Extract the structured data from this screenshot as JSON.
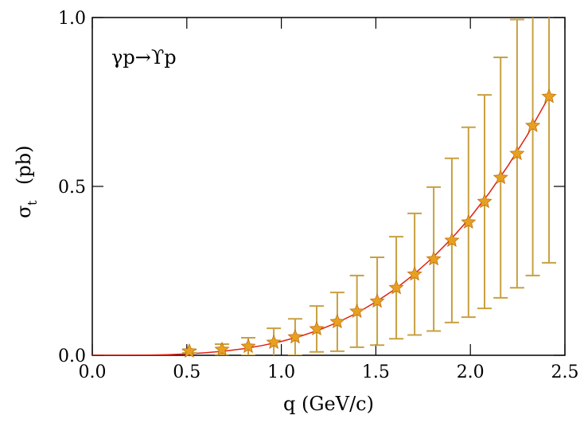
{
  "chart_data": {
    "type": "scatter",
    "annotation": "γp→ϒp",
    "xlabel": "q  (GeV/c)",
    "ylabel": {
      "symbol": "σ",
      "subscript": "t",
      "unit": "(pb)"
    },
    "xlim": [
      0,
      2.5
    ],
    "ylim": [
      0,
      1.0
    ],
    "xticks": [
      {
        "value": 0,
        "label": "0.0"
      },
      {
        "value": 0.5,
        "label": "0.5"
      },
      {
        "value": 1,
        "label": "1.0"
      },
      {
        "value": 1.5,
        "label": "1.5"
      },
      {
        "value": 2,
        "label": "2.0"
      },
      {
        "value": 2.5,
        "label": "2.5"
      }
    ],
    "yticks": [
      {
        "value": 0,
        "label": "0.0"
      },
      {
        "value": 0.5,
        "label": "0.5"
      },
      {
        "value": 1,
        "label": "1.0"
      }
    ],
    "series": [
      {
        "color": "#e8a020",
        "error_color": "#c8a040",
        "x": [
          0.513,
          0.686,
          0.825,
          0.96,
          1.073,
          1.187,
          1.296,
          1.4,
          1.507,
          1.608,
          1.705,
          1.806,
          1.902,
          1.99,
          2.075,
          2.16,
          2.247,
          2.33,
          2.416
        ],
        "values": [
          0.012,
          0.017,
          0.026,
          0.038,
          0.054,
          0.078,
          0.099,
          0.13,
          0.16,
          0.2,
          0.24,
          0.285,
          0.34,
          0.394,
          0.455,
          0.526,
          0.597,
          0.68,
          0.766
        ],
        "errors": [
          0.005,
          0.016,
          0.026,
          0.042,
          0.054,
          0.068,
          0.087,
          0.106,
          0.13,
          0.151,
          0.18,
          0.213,
          0.243,
          0.281,
          0.316,
          0.356,
          0.397,
          0.444,
          0.492
        ]
      },
      {
        "type": "line",
        "color": "#e02010",
        "x": [
          0,
          0.1,
          0.2,
          0.3,
          0.4,
          0.5,
          0.6,
          0.7,
          0.8,
          0.9,
          1.0,
          1.1,
          1.2,
          1.3,
          1.4,
          1.5,
          1.6,
          1.7,
          1.8,
          1.9,
          2.0,
          2.1,
          2.2,
          2.3,
          2.4,
          2.42
        ],
        "values": [
          0,
          2e-05,
          0.0002,
          0.0008,
          0.002,
          0.0041,
          0.0075,
          0.0125,
          0.0196,
          0.0289,
          0.041,
          0.0563,
          0.0751,
          0.098,
          0.125,
          0.158,
          0.195,
          0.239,
          0.289,
          0.345,
          0.409,
          0.481,
          0.562,
          0.651,
          0.75,
          0.768
        ]
      }
    ]
  }
}
